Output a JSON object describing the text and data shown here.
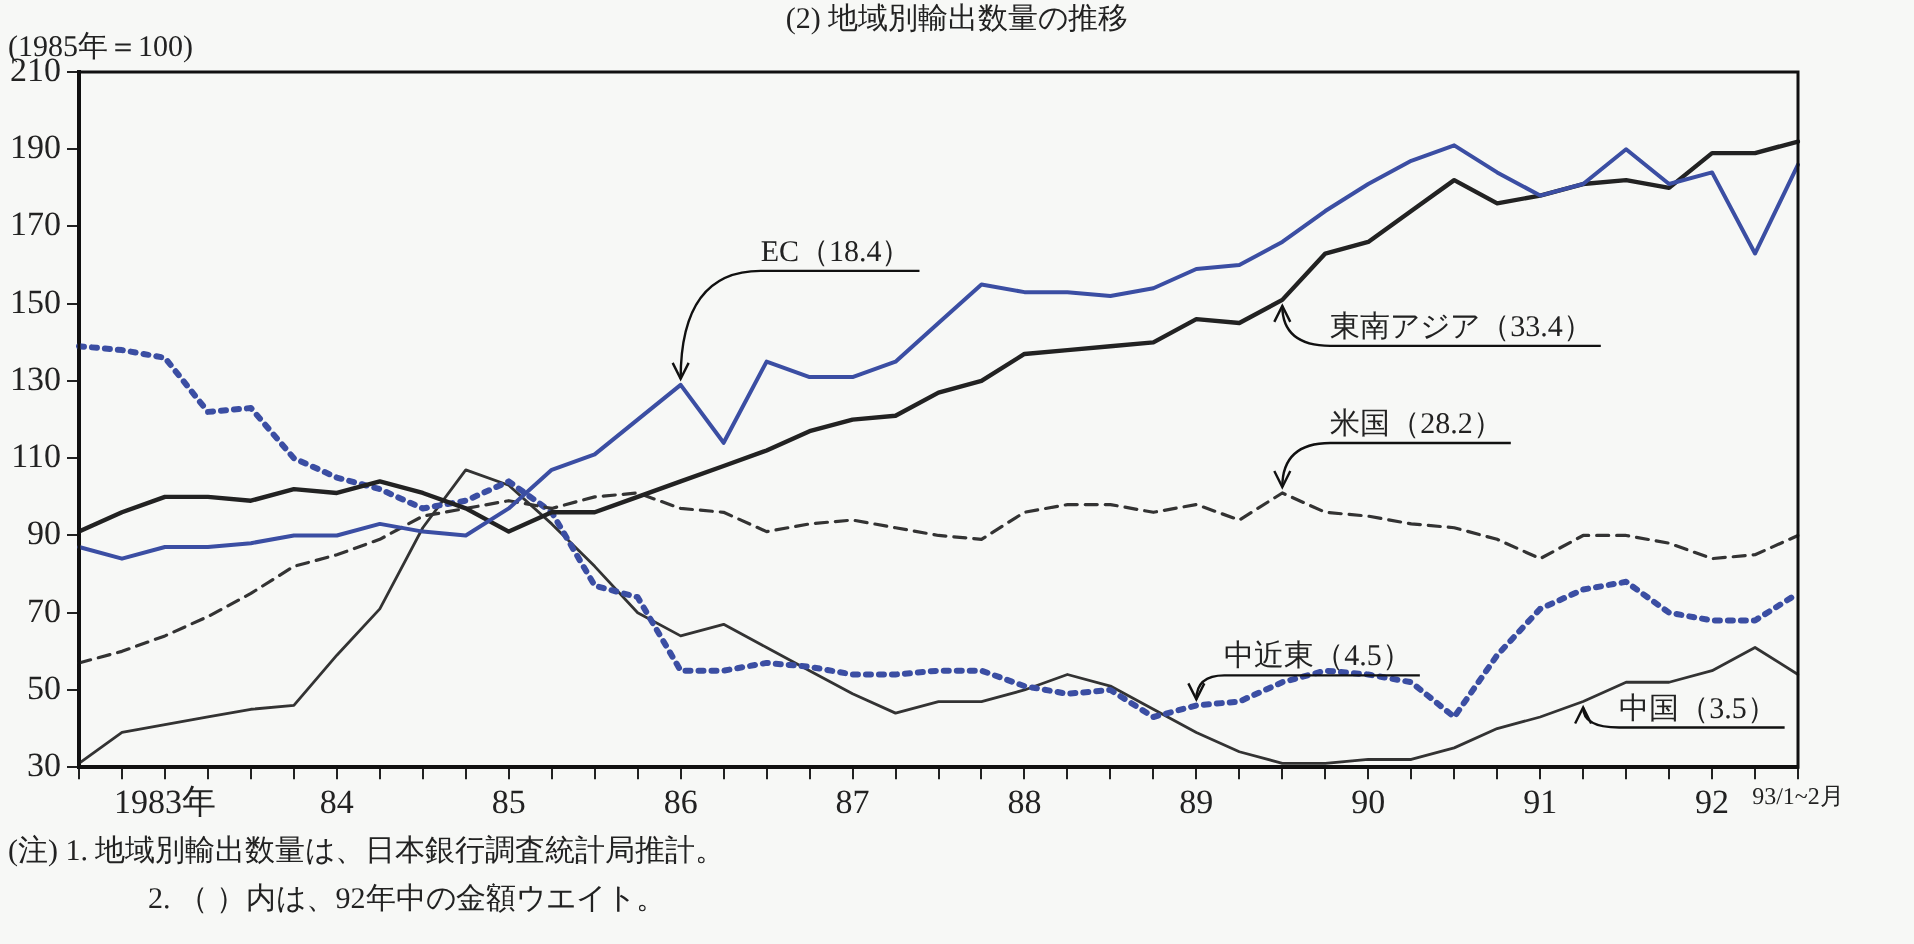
{
  "chart_data": {
    "type": "line",
    "title": "(2) 地域別輸出数量の推移",
    "ylabel": "(1985年＝100)",
    "categories": [
      null,
      null,
      "1983年",
      null,
      null,
      null,
      "84",
      null,
      null,
      null,
      "85",
      null,
      null,
      null,
      "86",
      null,
      null,
      null,
      "87",
      null,
      null,
      null,
      "88",
      null,
      null,
      null,
      "89",
      null,
      null,
      null,
      "90",
      null,
      null,
      null,
      "91",
      null,
      null,
      null,
      "92",
      null,
      "93/1~2月"
    ],
    "series": [
      {
        "name": "EC（18.4）",
        "color": "#3b4ea3",
        "line_style": "solid",
        "values": [
          87,
          84,
          87,
          87,
          88,
          90,
          90,
          93,
          91,
          90,
          97,
          107,
          111,
          120,
          129,
          114,
          135,
          131,
          131,
          135,
          145,
          155,
          153,
          153,
          152,
          154,
          159,
          160,
          166,
          174,
          181,
          187,
          191,
          184,
          178,
          181,
          190,
          181,
          184,
          163,
          186
        ]
      },
      {
        "name": "東南アジア（33.4）",
        "color": "#222222",
        "line_style": "solid",
        "values": [
          91,
          96,
          100,
          100,
          99,
          102,
          101,
          104,
          101,
          97,
          91,
          96,
          96,
          100,
          104,
          108,
          112,
          117,
          120,
          121,
          127,
          130,
          137,
          138,
          139,
          140,
          146,
          145,
          151,
          163,
          166,
          174,
          182,
          176,
          178,
          181,
          182,
          180,
          189,
          189,
          192
        ]
      },
      {
        "name": "米国（28.2）",
        "color": "#333333",
        "line_style": "dashed",
        "values": [
          57,
          60,
          64,
          69,
          75,
          82,
          85,
          89,
          95,
          97,
          99,
          97,
          100,
          101,
          97,
          96,
          91,
          93,
          94,
          92,
          90,
          89,
          96,
          98,
          98,
          96,
          98,
          94,
          101,
          96,
          95,
          93,
          92,
          89,
          84,
          90,
          90,
          88,
          84,
          85,
          90
        ]
      },
      {
        "name": "中近東（4.5）",
        "color": "#3b4ea3",
        "line_style": "dotted",
        "values": [
          139,
          138,
          136,
          122,
          123,
          110,
          105,
          102,
          97,
          99,
          104,
          96,
          77,
          74,
          55,
          55,
          57,
          56,
          54,
          54,
          55,
          55,
          51,
          49,
          50,
          43,
          46,
          47,
          52,
          55,
          54,
          52,
          43,
          59,
          71,
          76,
          78,
          70,
          68,
          68,
          75
        ]
      },
      {
        "name": "中国（3.5）",
        "color": "#333333",
        "line_style": "solid",
        "values": [
          31,
          39,
          41,
          43,
          45,
          46,
          59,
          71,
          92,
          107,
          103,
          93,
          82,
          70,
          64,
          67,
          61,
          55,
          49,
          44,
          47,
          47,
          50,
          54,
          51,
          45,
          39,
          34,
          31,
          31,
          32,
          32,
          35,
          40,
          43,
          47,
          52,
          52,
          55,
          61,
          54
        ]
      }
    ],
    "ylim": [
      30,
      210
    ],
    "yticks": [
      30,
      50,
      70,
      90,
      110,
      130,
      150,
      170,
      190,
      210
    ],
    "grid": false,
    "legend": false,
    "marker": "none",
    "annotations": [
      "(注) 1. 地域別輸出数量は、日本銀行調査統計局推計。",
      "2. （ ）内は、92年中の金額ウエイト。"
    ]
  }
}
